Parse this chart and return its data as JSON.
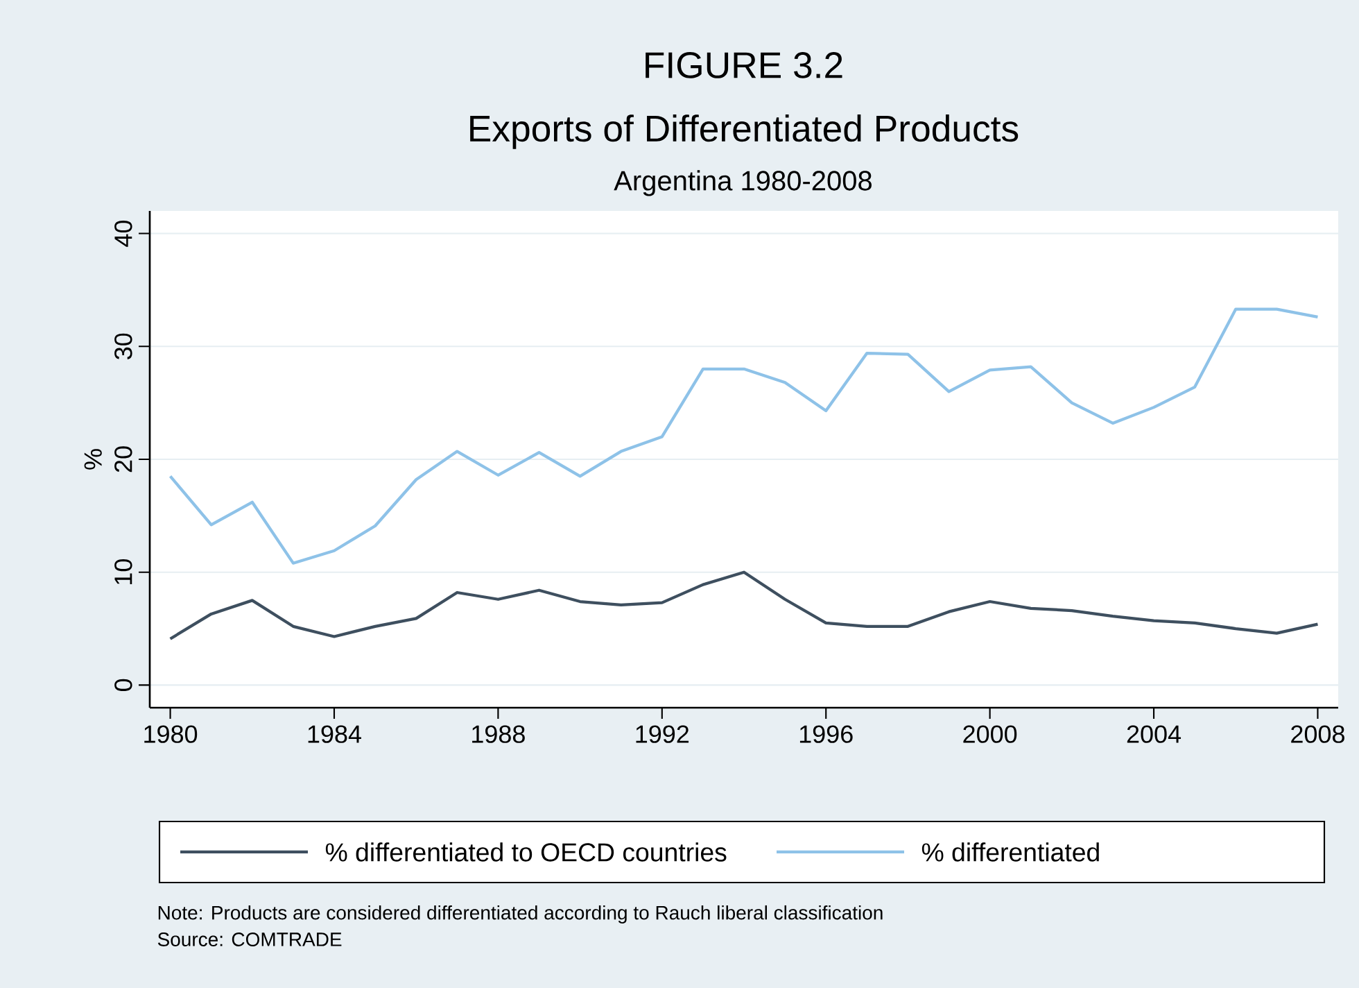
{
  "chart_data": {
    "type": "line",
    "title": "FIGURE 3.2",
    "subtitle": "Exports of Differentiated Products",
    "ylabel": "%",
    "annotations": [
      "Argentina 1980-2008",
      "Note: Products are considered differentiated according to Rauch liberal classification",
      "Source: COMTRADE"
    ],
    "x": [
      1980,
      1981,
      1982,
      1983,
      1984,
      1985,
      1986,
      1987,
      1988,
      1989,
      1990,
      1991,
      1992,
      1993,
      1994,
      1995,
      1996,
      1997,
      1998,
      1999,
      2000,
      2001,
      2002,
      2003,
      2004,
      2005,
      2006,
      2007,
      2008
    ],
    "series": [
      {
        "name": "% differentiated to OECD countries",
        "color": "#3e4f5f",
        "values": [
          4.1,
          6.3,
          7.5,
          5.2,
          4.3,
          5.2,
          5.9,
          8.2,
          7.6,
          8.4,
          7.4,
          7.1,
          7.3,
          8.9,
          10,
          7.6,
          5.5,
          5.2,
          5.2,
          6.5,
          7.4,
          6.8,
          6.6,
          6.1,
          5.7,
          5.5,
          5.0,
          4.6,
          5.4
        ]
      },
      {
        "name": "% differentiated",
        "color": "#8ec2e8",
        "values": [
          18.5,
          14.2,
          16.2,
          10.8,
          11.9,
          14.1,
          18.2,
          20.7,
          18.6,
          20.6,
          18.5,
          20.7,
          22,
          28,
          28,
          26.8,
          24.3,
          29.4,
          29.3,
          26,
          27.9,
          28.2,
          25,
          23.2,
          24.6,
          26.4,
          33.3,
          33.3,
          32.6
        ]
      }
    ],
    "xlim": [
      1979.5,
      2008.5
    ],
    "xticks": [
      1980,
      1984,
      1988,
      1992,
      1996,
      2000,
      2004,
      2008
    ],
    "ylim": [
      -2,
      42
    ],
    "yticks": [
      0,
      10,
      20,
      30,
      40
    ],
    "grid": "y",
    "legend": "bottom",
    "marker": "none",
    "line_style": "solid"
  }
}
